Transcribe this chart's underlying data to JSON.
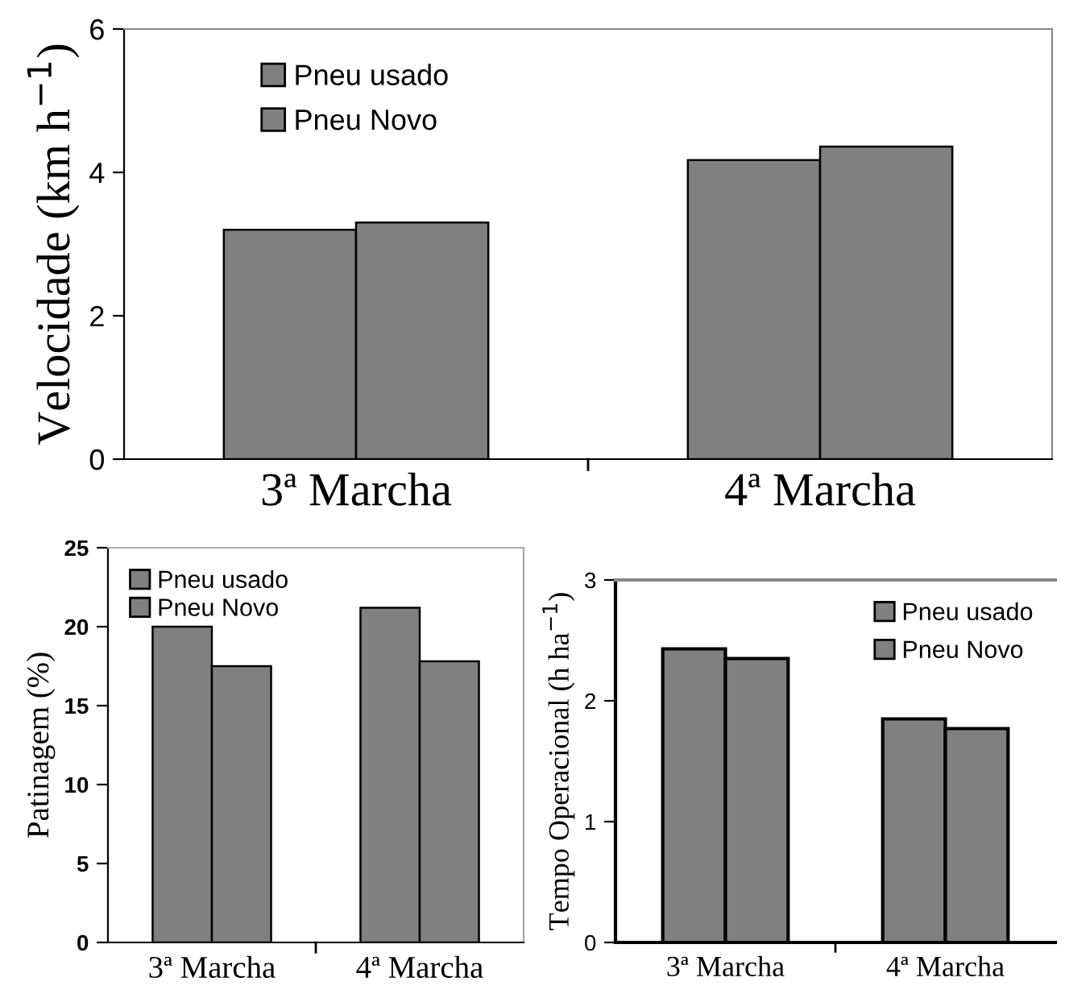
{
  "chart_data": [
    {
      "type": "bar",
      "ylabel": "Velocidade (km h$^{−1}$)",
      "categories": [
        "3ª Marcha",
        "4ª Marcha"
      ],
      "series": [
        {
          "name": "Pneu usado",
          "color": "#808080",
          "values": [
            3.2,
            4.17
          ]
        },
        {
          "name": "Pneu Novo",
          "color": "#808080",
          "values": [
            3.3,
            4.36
          ]
        }
      ],
      "ylim": [
        0,
        6
      ],
      "yticks": [
        0,
        2,
        4,
        6
      ],
      "legend": "top left",
      "grid": false
    },
    {
      "type": "bar",
      "ylabel": "Patinagem (%)",
      "categories": [
        "3ª Marcha",
        "4ª Marcha"
      ],
      "series": [
        {
          "name": "Pneu usado",
          "color": "#808080",
          "values": [
            20.0,
            21.2
          ]
        },
        {
          "name": "Pneu Novo",
          "color": "#808080",
          "values": [
            17.5,
            17.8
          ]
        }
      ],
      "ylim": [
        0,
        25
      ],
      "yticks": [
        0,
        5,
        10,
        15,
        20,
        25
      ],
      "legend": "top left",
      "grid": false
    },
    {
      "type": "bar",
      "ylabel": "Tempo Operacional (h ha$^{−1}$)",
      "categories": [
        "3ª Marcha",
        "4ª Marcha"
      ],
      "series": [
        {
          "name": "Pneu usado",
          "color": "#808080",
          "values": [
            2.43,
            1.85
          ]
        },
        {
          "name": "Pneu Novo",
          "color": "#808080",
          "values": [
            2.35,
            1.77
          ]
        }
      ],
      "ylim": [
        0,
        3
      ],
      "yticks": [
        0,
        1,
        2,
        3
      ],
      "legend": "top right",
      "grid": false
    }
  ]
}
